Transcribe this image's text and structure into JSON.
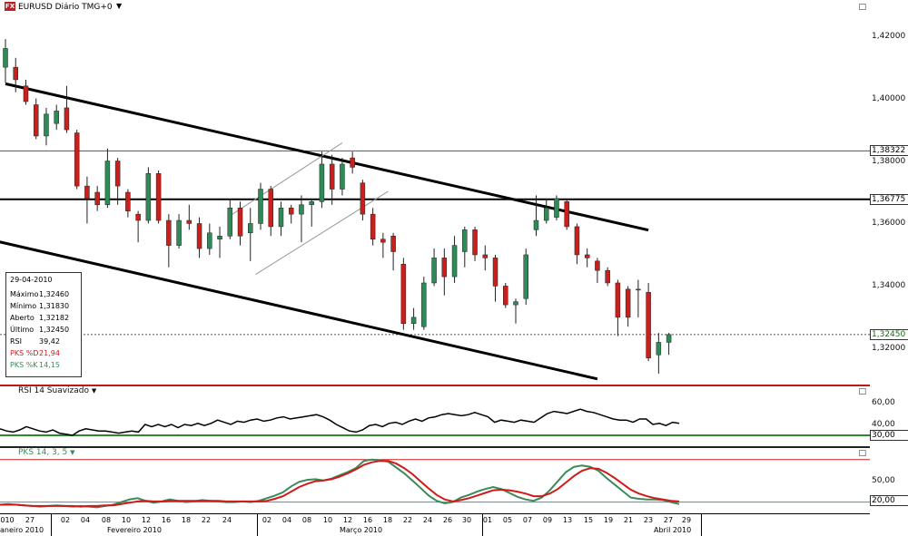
{
  "header": {
    "symbol_title": "EURUSD Diário TMG+0",
    "icon_text": "FX",
    "caret": "▼",
    "window_button": "□"
  },
  "price_axis": {
    "ticks": [
      "1,42000",
      "1,40000",
      "1,38000",
      "1,36000",
      "1,34000",
      "1,32000"
    ],
    "flags": [
      "1,38322",
      "1,36775",
      "1,32450"
    ]
  },
  "info_box": {
    "date": "29-04-2010",
    "rows": [
      {
        "label": "Máximo",
        "value": "1,32460"
      },
      {
        "label": "Mínimo",
        "value": "1,31830"
      },
      {
        "label": "Aberto",
        "value": "1,32182"
      },
      {
        "label": "Último",
        "value": "1,32450"
      },
      {
        "label": "RSI",
        "value": "39,42"
      },
      {
        "label": "PKS %D",
        "value": "21,94"
      },
      {
        "label": "PKS %K",
        "value": "14,15"
      }
    ]
  },
  "rsi_pane": {
    "title": "RSI 14 Suavizado",
    "ticks": [
      "60,00",
      "40,00"
    ],
    "flag": "30,00",
    "button": "□"
  },
  "pks_pane": {
    "title": "PKS 14, 3, 5",
    "ticks": [
      "50,00"
    ],
    "flag": "20,00",
    "button": "□"
  },
  "x_axis": {
    "days": [
      "010",
      "27",
      "02",
      "04",
      "08",
      "10",
      "12",
      "16",
      "18",
      "22",
      "24",
      "02",
      "04",
      "08",
      "10",
      "12",
      "16",
      "18",
      "22",
      "24",
      "26",
      "30",
      "01",
      "05",
      "07",
      "09",
      "13",
      "15",
      "19",
      "21",
      "23",
      "27",
      "29"
    ],
    "months": [
      "aneiro 2010",
      "Fevereiro 2010",
      "Março 2010",
      "Abril 2010"
    ]
  },
  "colors": {
    "up": "#2e8b57",
    "down": "#c8201c",
    "rsi_line": "#000000",
    "pks_k": "#3a8a5a",
    "pks_d": "#d01a1a",
    "level_green": "#2a8a2a"
  },
  "chart_data": [
    {
      "type": "candlestick",
      "title": "EURUSD Diário TMG+0",
      "ylim": [
        1.3085,
        1.4315
      ],
      "levels": [
        1.38322,
        1.36775,
        1.3245
      ],
      "trendlines": [
        {
          "from": [
            0,
            1.4047
          ],
          "to": [
            63,
            1.3579
          ]
        },
        {
          "from": [
            -4,
            1.3567
          ],
          "to": [
            58,
            1.3103
          ]
        }
      ],
      "candles": [
        {
          "o": 1.41,
          "h": 1.419,
          "l": 1.405,
          "c": 1.416
        },
        {
          "o": 1.41,
          "h": 1.413,
          "l": 1.402,
          "c": 1.406
        },
        {
          "o": 1.404,
          "h": 1.406,
          "l": 1.398,
          "c": 1.399
        },
        {
          "o": 1.398,
          "h": 1.4,
          "l": 1.387,
          "c": 1.388
        },
        {
          "o": 1.388,
          "h": 1.397,
          "l": 1.385,
          "c": 1.395
        },
        {
          "o": 1.392,
          "h": 1.398,
          "l": 1.39,
          "c": 1.396
        },
        {
          "o": 1.397,
          "h": 1.404,
          "l": 1.389,
          "c": 1.39
        },
        {
          "o": 1.389,
          "h": 1.39,
          "l": 1.371,
          "c": 1.372
        },
        {
          "o": 1.372,
          "h": 1.375,
          "l": 1.36,
          "c": 1.368
        },
        {
          "o": 1.37,
          "h": 1.372,
          "l": 1.364,
          "c": 1.366
        },
        {
          "o": 1.366,
          "h": 1.384,
          "l": 1.365,
          "c": 1.38
        },
        {
          "o": 1.38,
          "h": 1.381,
          "l": 1.366,
          "c": 1.372
        },
        {
          "o": 1.37,
          "h": 1.371,
          "l": 1.362,
          "c": 1.364
        },
        {
          "o": 1.363,
          "h": 1.364,
          "l": 1.354,
          "c": 1.361
        },
        {
          "o": 1.361,
          "h": 1.378,
          "l": 1.36,
          "c": 1.376
        },
        {
          "o": 1.376,
          "h": 1.377,
          "l": 1.36,
          "c": 1.361
        },
        {
          "o": 1.361,
          "h": 1.363,
          "l": 1.346,
          "c": 1.353
        },
        {
          "o": 1.353,
          "h": 1.363,
          "l": 1.352,
          "c": 1.361
        },
        {
          "o": 1.361,
          "h": 1.366,
          "l": 1.358,
          "c": 1.36
        },
        {
          "o": 1.36,
          "h": 1.362,
          "l": 1.349,
          "c": 1.352
        },
        {
          "o": 1.352,
          "h": 1.36,
          "l": 1.35,
          "c": 1.357
        },
        {
          "o": 1.355,
          "h": 1.359,
          "l": 1.349,
          "c": 1.356
        },
        {
          "o": 1.356,
          "h": 1.368,
          "l": 1.355,
          "c": 1.365
        },
        {
          "o": 1.365,
          "h": 1.367,
          "l": 1.353,
          "c": 1.356
        },
        {
          "o": 1.357,
          "h": 1.365,
          "l": 1.348,
          "c": 1.36
        },
        {
          "o": 1.36,
          "h": 1.373,
          "l": 1.358,
          "c": 1.371
        },
        {
          "o": 1.371,
          "h": 1.372,
          "l": 1.356,
          "c": 1.359
        },
        {
          "o": 1.359,
          "h": 1.367,
          "l": 1.356,
          "c": 1.365
        },
        {
          "o": 1.365,
          "h": 1.366,
          "l": 1.36,
          "c": 1.363
        },
        {
          "o": 1.363,
          "h": 1.369,
          "l": 1.354,
          "c": 1.366
        },
        {
          "o": 1.366,
          "h": 1.368,
          "l": 1.359,
          "c": 1.367
        },
        {
          "o": 1.367,
          "h": 1.383,
          "l": 1.365,
          "c": 1.379
        },
        {
          "o": 1.379,
          "h": 1.382,
          "l": 1.366,
          "c": 1.371
        },
        {
          "o": 1.371,
          "h": 1.381,
          "l": 1.369,
          "c": 1.379
        },
        {
          "o": 1.381,
          "h": 1.383,
          "l": 1.376,
          "c": 1.378
        },
        {
          "o": 1.373,
          "h": 1.374,
          "l": 1.361,
          "c": 1.363
        },
        {
          "o": 1.363,
          "h": 1.365,
          "l": 1.353,
          "c": 1.355
        },
        {
          "o": 1.355,
          "h": 1.357,
          "l": 1.349,
          "c": 1.354
        },
        {
          "o": 1.356,
          "h": 1.357,
          "l": 1.345,
          "c": 1.351
        },
        {
          "o": 1.347,
          "h": 1.349,
          "l": 1.326,
          "c": 1.328
        },
        {
          "o": 1.328,
          "h": 1.333,
          "l": 1.326,
          "c": 1.33
        },
        {
          "o": 1.327,
          "h": 1.343,
          "l": 1.326,
          "c": 1.341
        },
        {
          "o": 1.341,
          "h": 1.352,
          "l": 1.34,
          "c": 1.349
        },
        {
          "o": 1.349,
          "h": 1.352,
          "l": 1.337,
          "c": 1.343
        },
        {
          "o": 1.343,
          "h": 1.356,
          "l": 1.341,
          "c": 1.353
        },
        {
          "o": 1.351,
          "h": 1.359,
          "l": 1.346,
          "c": 1.358
        },
        {
          "o": 1.358,
          "h": 1.359,
          "l": 1.348,
          "c": 1.35
        },
        {
          "o": 1.35,
          "h": 1.353,
          "l": 1.345,
          "c": 1.349
        },
        {
          "o": 1.349,
          "h": 1.35,
          "l": 1.335,
          "c": 1.34
        },
        {
          "o": 1.34,
          "h": 1.341,
          "l": 1.333,
          "c": 1.334
        },
        {
          "o": 1.334,
          "h": 1.336,
          "l": 1.328,
          "c": 1.335
        },
        {
          "o": 1.336,
          "h": 1.352,
          "l": 1.334,
          "c": 1.35
        },
        {
          "o": 1.358,
          "h": 1.369,
          "l": 1.356,
          "c": 1.361
        },
        {
          "o": 1.361,
          "h": 1.368,
          "l": 1.36,
          "c": 1.365
        },
        {
          "o": 1.362,
          "h": 1.369,
          "l": 1.361,
          "c": 1.368
        },
        {
          "o": 1.367,
          "h": 1.368,
          "l": 1.358,
          "c": 1.359
        },
        {
          "o": 1.359,
          "h": 1.36,
          "l": 1.347,
          "c": 1.35
        },
        {
          "o": 1.35,
          "h": 1.352,
          "l": 1.346,
          "c": 1.349
        },
        {
          "o": 1.348,
          "h": 1.349,
          "l": 1.341,
          "c": 1.345
        },
        {
          "o": 1.345,
          "h": 1.346,
          "l": 1.34,
          "c": 1.341
        },
        {
          "o": 1.341,
          "h": 1.342,
          "l": 1.324,
          "c": 1.33
        },
        {
          "o": 1.339,
          "h": 1.34,
          "l": 1.327,
          "c": 1.33
        },
        {
          "o": 1.339,
          "h": 1.342,
          "l": 1.33,
          "c": 1.339
        },
        {
          "o": 1.338,
          "h": 1.341,
          "l": 1.316,
          "c": 1.317
        },
        {
          "o": 1.318,
          "h": 1.325,
          "l": 1.312,
          "c": 1.322
        },
        {
          "o": 1.322,
          "h": 1.325,
          "l": 1.318,
          "c": 1.3245
        }
      ]
    },
    {
      "type": "line",
      "title": "RSI 14 Suavizado",
      "ylim": [
        20,
        75
      ],
      "levels": [
        30
      ],
      "series": [
        {
          "name": "RSI 14 Suavizado",
          "values": [
            36,
            34,
            33,
            35,
            38,
            36,
            34,
            33,
            35,
            32,
            31,
            30,
            34,
            36,
            35,
            34,
            34,
            33,
            32,
            33,
            34,
            33,
            40,
            38,
            40,
            38,
            40,
            37,
            40,
            39,
            41,
            39,
            41,
            44,
            42,
            40,
            43,
            42,
            44,
            45,
            43,
            44,
            46,
            47,
            45,
            46,
            47,
            48,
            49,
            47,
            44,
            40,
            37,
            34,
            33,
            35,
            39,
            40,
            38,
            41,
            42,
            40,
            43,
            45,
            43,
            46,
            47,
            49,
            50,
            49,
            48,
            49,
            51,
            49,
            47,
            42,
            44,
            43,
            42,
            44,
            43,
            42,
            46,
            50,
            52,
            51,
            50,
            52,
            54,
            52,
            51,
            49,
            47,
            45,
            44,
            44,
            42,
            45,
            45,
            40,
            41,
            39,
            42,
            41
          ]
        }
      ]
    },
    {
      "type": "line",
      "title": "PKS 14, 3, 5",
      "ylim": [
        0,
        100
      ],
      "levels": [
        20
      ],
      "series": [
        {
          "name": "PKS %K",
          "values": [
            16,
            17,
            16,
            15,
            14,
            13,
            14,
            15,
            14,
            13,
            14,
            13,
            12,
            14,
            16,
            20,
            24,
            26,
            22,
            19,
            21,
            24,
            22,
            20,
            21,
            23,
            22,
            21,
            20,
            20,
            21,
            20,
            22,
            26,
            30,
            35,
            44,
            51,
            54,
            55,
            53,
            56,
            61,
            66,
            72,
            83,
            85,
            84,
            82,
            73,
            64,
            53,
            42,
            30,
            22,
            18,
            20,
            27,
            31,
            36,
            40,
            43,
            40,
            34,
            28,
            24,
            22,
            27,
            38,
            52,
            66,
            74,
            76,
            74,
            68,
            57,
            47,
            37,
            27,
            25,
            24,
            24,
            23,
            20,
            17
          ]
        },
        {
          "name": "PKS %D",
          "values": [
            16,
            16,
            16,
            15,
            14,
            14,
            14,
            14,
            14,
            14,
            13,
            14,
            14,
            15,
            15,
            17,
            19,
            21,
            22,
            21,
            21,
            22,
            22,
            22,
            22,
            22,
            22,
            22,
            21,
            21,
            21,
            21,
            21,
            22,
            25,
            29,
            36,
            43,
            48,
            52,
            53,
            55,
            59,
            64,
            70,
            77,
            81,
            83,
            83,
            79,
            72,
            63,
            52,
            41,
            31,
            24,
            21,
            23,
            26,
            30,
            34,
            38,
            39,
            38,
            36,
            33,
            29,
            29,
            33,
            40,
            50,
            60,
            68,
            72,
            71,
            65,
            57,
            48,
            39,
            33,
            29,
            26,
            24,
            22,
            21
          ]
        }
      ]
    }
  ]
}
